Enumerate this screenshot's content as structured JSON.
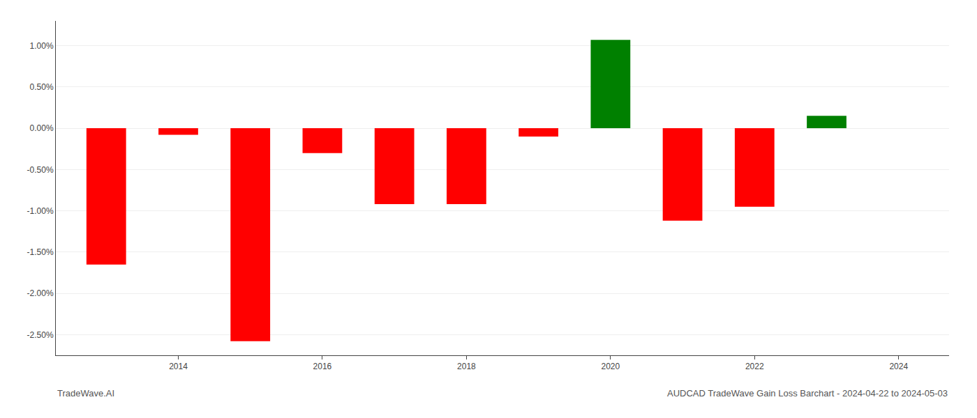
{
  "chart_data": {
    "type": "bar",
    "x": [
      2013,
      2014,
      2015,
      2016,
      2017,
      2018,
      2019,
      2020,
      2021,
      2022,
      2023
    ],
    "values": [
      -0.0165,
      -0.0008,
      -0.0258,
      -0.003,
      -0.0092,
      -0.0092,
      -0.001,
      0.0107,
      -0.0112,
      -0.0095,
      0.0015
    ],
    "colors": [
      "#ff0000",
      "#ff0000",
      "#ff0000",
      "#ff0000",
      "#ff0000",
      "#ff0000",
      "#ff0000",
      "#008000",
      "#ff0000",
      "#ff0000",
      "#008000"
    ],
    "xlim": [
      2012.3,
      2024.7
    ],
    "xticks": [
      2014,
      2016,
      2018,
      2020,
      2022,
      2024
    ],
    "ylim": [
      -0.0275,
      0.013
    ],
    "yticks": [
      {
        "value": -0.025,
        "label": "-2.50%"
      },
      {
        "value": -0.02,
        "label": "-2.00%"
      },
      {
        "value": -0.015,
        "label": "-1.50%"
      },
      {
        "value": -0.01,
        "label": "-1.00%"
      },
      {
        "value": -0.005,
        "label": "-0.50%"
      },
      {
        "value": 0.0,
        "label": "0.00%"
      },
      {
        "value": 0.005,
        "label": "0.50%"
      },
      {
        "value": 0.01,
        "label": "1.00%"
      }
    ],
    "grid": true,
    "annotations": [
      "TradeWave.AI",
      "AUDCAD TradeWave Gain Loss Barchart - 2024-04-22 to 2024-05-03"
    ]
  }
}
